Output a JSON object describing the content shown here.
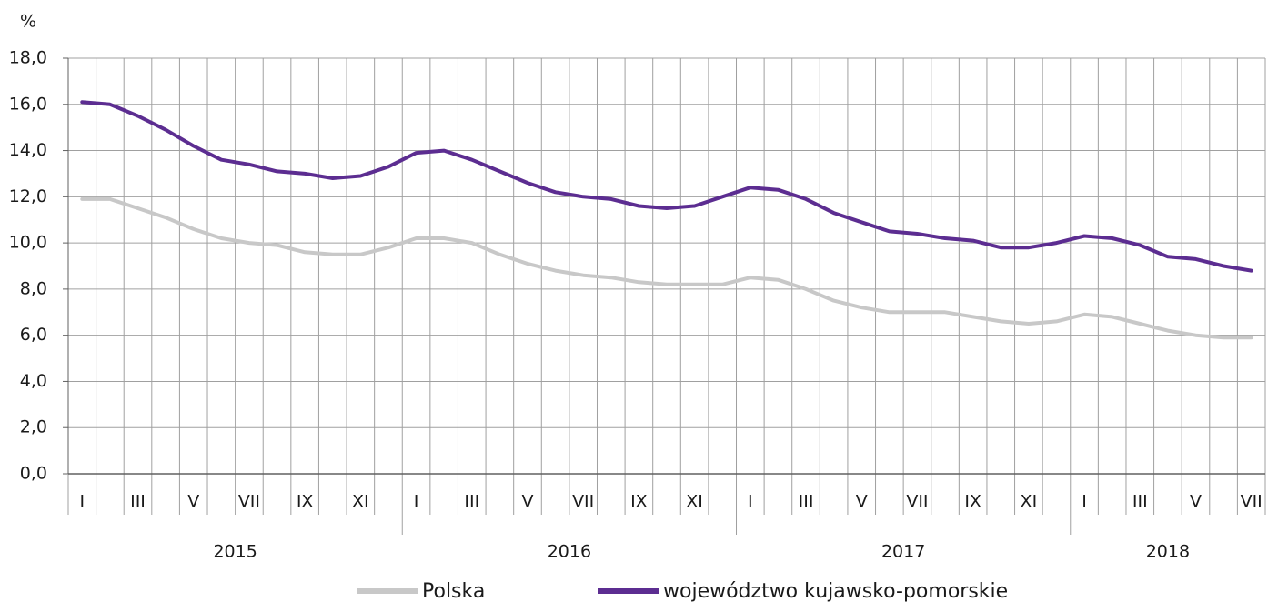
{
  "chart_data": {
    "type": "line",
    "ylabel": "%",
    "categories": [
      "I",
      null,
      "III",
      null,
      "V",
      null,
      "VII",
      null,
      "IX",
      null,
      "XI",
      null,
      "I",
      null,
      "III",
      null,
      "V",
      null,
      "VII",
      null,
      "IX",
      null,
      "XI",
      null,
      "I",
      null,
      "III",
      null,
      "V",
      null,
      "VII",
      null,
      "IX",
      null,
      "XI",
      null,
      "I",
      null,
      "III",
      null,
      "V",
      null,
      "VII"
    ],
    "x_groups": [
      {
        "label": "2015",
        "count": 12
      },
      {
        "label": "2016",
        "count": 12
      },
      {
        "label": "2017",
        "count": 12
      },
      {
        "label": "2018",
        "count": 7
      }
    ],
    "series": [
      {
        "name": "Polska",
        "color": "#c8c8c8",
        "values": [
          11.9,
          11.9,
          11.5,
          11.1,
          10.6,
          10.2,
          10.0,
          9.9,
          9.6,
          9.5,
          9.5,
          9.8,
          10.2,
          10.2,
          10.0,
          9.5,
          9.1,
          8.8,
          8.6,
          8.5,
          8.3,
          8.2,
          8.2,
          8.2,
          8.5,
          8.4,
          8.0,
          7.5,
          7.2,
          7.0,
          7.0,
          7.0,
          6.8,
          6.6,
          6.5,
          6.6,
          6.9,
          6.8,
          6.5,
          6.2,
          6.0,
          5.9,
          5.9
        ]
      },
      {
        "name": "województwo kujawsko-pomorskie",
        "color": "#5c2d91",
        "values": [
          16.1,
          16.0,
          15.5,
          14.9,
          14.2,
          13.6,
          13.4,
          13.1,
          13.0,
          12.8,
          12.9,
          13.3,
          13.9,
          14.0,
          13.6,
          13.1,
          12.6,
          12.2,
          12.0,
          11.9,
          11.6,
          11.5,
          11.6,
          12.0,
          12.4,
          12.3,
          11.9,
          11.3,
          10.9,
          10.5,
          10.4,
          10.2,
          10.1,
          9.8,
          9.8,
          10.0,
          10.3,
          10.2,
          9.9,
          9.4,
          9.3,
          9.0,
          8.8
        ]
      }
    ],
    "ylim": [
      0,
      18
    ],
    "yticks": [
      {
        "value": 0,
        "label": "0,0"
      },
      {
        "value": 2,
        "label": "2,0"
      },
      {
        "value": 4,
        "label": "4,0"
      },
      {
        "value": 6,
        "label": "6,0"
      },
      {
        "value": 8,
        "label": "8,0"
      },
      {
        "value": 10,
        "label": "10,0"
      },
      {
        "value": 12,
        "label": "12,0"
      },
      {
        "value": 14,
        "label": "14,0"
      },
      {
        "value": 16,
        "label": "16,0"
      },
      {
        "value": 18,
        "label": "18,0"
      }
    ],
    "grid": true,
    "legend": "bottom"
  }
}
